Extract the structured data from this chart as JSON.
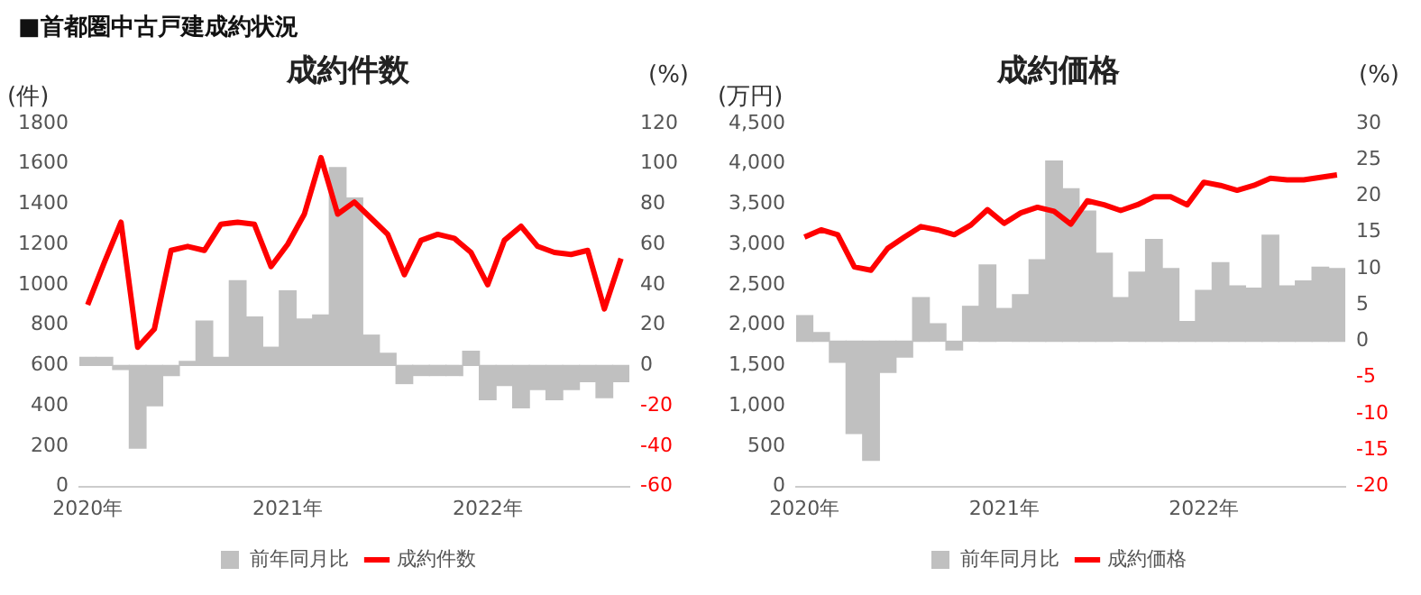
{
  "chart_data": [
    {
      "type": "bar",
      "title": "成約件数",
      "annotations": [
        "■首都圏中古戸建成約状況"
      ],
      "ylabel": "(件)",
      "y2label": "(%)",
      "categories": [
        "2020年",
        null,
        null,
        null,
        null,
        null,
        null,
        null,
        null,
        null,
        null,
        null,
        "2021年",
        null,
        null,
        null,
        null,
        null,
        null,
        null,
        null,
        null,
        null,
        null,
        "2022年",
        null,
        null,
        null,
        null,
        null,
        null,
        null,
        null
      ],
      "series": [
        {
          "name": "前年同月比",
          "axis": "y2",
          "color": "#c0c0c0",
          "values": [
            4,
            4,
            -2,
            -41,
            -20,
            -5,
            2,
            22,
            4,
            42,
            24,
            9,
            37,
            23,
            25,
            98,
            83,
            15,
            6,
            -9,
            -5,
            -5,
            -5,
            7,
            -17,
            -10,
            -21,
            -12,
            -17,
            -12,
            -8,
            -16,
            -8
          ]
        },
        {
          "name": "成約件数",
          "type": "line",
          "color": "#ff0000",
          "values": [
            900,
            1110,
            1310,
            690,
            780,
            1170,
            1190,
            1170,
            1300,
            1310,
            1300,
            1090,
            1200,
            1350,
            1630,
            1350,
            1410,
            1330,
            1250,
            1050,
            1220,
            1250,
            1230,
            1160,
            1000,
            1220,
            1290,
            1190,
            1160,
            1150,
            1170,
            880,
            1130
          ]
        }
      ],
      "ylim": [
        0,
        1800
      ],
      "yticks": [
        0,
        200,
        400,
        600,
        800,
        1000,
        1200,
        1400,
        1600,
        1800
      ],
      "y2lim": [
        -60,
        120
      ],
      "y2ticks": [
        -60,
        -40,
        -20,
        0,
        20,
        40,
        60,
        80,
        100,
        120
      ],
      "grid": false,
      "legend": "bottom",
      "marker": "none"
    },
    {
      "type": "bar",
      "title": "成約価格",
      "ylabel": "(万円)",
      "y2label": "(%)",
      "categories": [
        "2020年",
        null,
        null,
        null,
        null,
        null,
        null,
        null,
        null,
        null,
        null,
        null,
        "2021年",
        null,
        null,
        null,
        null,
        null,
        null,
        null,
        null,
        null,
        null,
        null,
        "2022年",
        null,
        null,
        null,
        null,
        null,
        null,
        null,
        null
      ],
      "series": [
        {
          "name": "前年同月比",
          "axis": "y2",
          "color": "#c0c0c0",
          "values": [
            3.5,
            1.2,
            -2.9,
            -12.7,
            -16.4,
            -4.3,
            -2.2,
            6.0,
            2.4,
            -1.2,
            4.8,
            10.5,
            4.5,
            6.4,
            11.2,
            24.8,
            21.0,
            17.9,
            12.1,
            6.0,
            9.5,
            14.0,
            10.0,
            2.7,
            7.0,
            10.8,
            7.6,
            7.3,
            14.6,
            7.6,
            8.3,
            10.2,
            10.0
          ]
        },
        {
          "name": "成約価格",
          "type": "line",
          "color": "#ff0000",
          "values": [
            3090,
            3180,
            3120,
            2720,
            2680,
            2950,
            3090,
            3220,
            3180,
            3120,
            3240,
            3430,
            3260,
            3390,
            3460,
            3410,
            3250,
            3540,
            3490,
            3420,
            3490,
            3590,
            3590,
            3490,
            3770,
            3730,
            3670,
            3730,
            3820,
            3800,
            3800,
            3830,
            3860
          ]
        }
      ],
      "ylim": [
        0,
        4500
      ],
      "yticks": [
        0,
        {
          "value": 500,
          "label": "500"
        },
        {
          "value": 1000,
          "label": "1,000"
        },
        {
          "value": 1500,
          "label": "1,500"
        },
        {
          "value": 2000,
          "label": "2,000"
        },
        {
          "value": 2500,
          "label": "2,500"
        },
        {
          "value": 3000,
          "label": "3,000"
        },
        {
          "value": 3500,
          "label": "3,500"
        },
        {
          "value": 4000,
          "label": "4,000"
        },
        {
          "value": 4500,
          "label": "4,500"
        }
      ],
      "y2lim": [
        -20,
        30
      ],
      "y2ticks": [
        -20,
        -15,
        -10,
        -5,
        0,
        5,
        10,
        15,
        20,
        25,
        30
      ],
      "grid": false,
      "legend": "bottom",
      "marker": "none"
    }
  ]
}
